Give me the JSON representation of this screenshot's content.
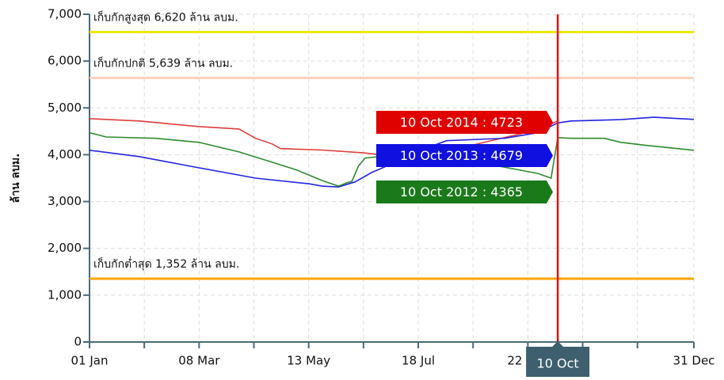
{
  "chart_data": {
    "type": "line",
    "y_label": "ล้าน ลบม.",
    "xlim": [
      0,
      364
    ],
    "xticks": [
      {
        "value": 0,
        "label": "01 Jan"
      },
      {
        "value": 33,
        "label": null
      },
      {
        "value": 66,
        "label": "08 Mar"
      },
      {
        "value": 99,
        "label": null
      },
      {
        "value": 132,
        "label": "13 May"
      },
      {
        "value": 165,
        "label": null
      },
      {
        "value": 198,
        "label": "18 Jul"
      },
      {
        "value": 231,
        "label": null
      },
      {
        "value": 264,
        "label": "22 Sep"
      },
      {
        "value": 297,
        "label": null
      },
      {
        "value": 330,
        "label": null
      },
      {
        "value": 364,
        "label": "31 Dec"
      }
    ],
    "ylim": [
      0,
      7000
    ],
    "yticks": [
      {
        "value": 0,
        "label": "0"
      },
      {
        "value": 1000,
        "label": "1,000"
      },
      {
        "value": 2000,
        "label": "2,000"
      },
      {
        "value": 3000,
        "label": "3,000"
      },
      {
        "value": 4000,
        "label": "4,000"
      },
      {
        "value": 5000,
        "label": "5,000"
      },
      {
        "value": 6000,
        "label": "6,000"
      },
      {
        "value": 7000,
        "label": "7,000"
      }
    ],
    "grid": true,
    "reference_lines": [
      {
        "value": 6620,
        "label": "เก็บกักสูงสุด 6,620 ล้าน ลบม.",
        "color": "#f0e800"
      },
      {
        "value": 5639,
        "label": "เก็บกักปกติ 5,639 ล้าน ลบม.",
        "color": "#ffd2bc"
      },
      {
        "value": 1352,
        "label": "เก็บกักต่ำสุด 1,352 ล้าน ลบม.",
        "color": "#ffa500"
      }
    ],
    "crosshair": {
      "x": 282,
      "label": "10 Oct",
      "color": "#e81010"
    },
    "series": [
      {
        "name": "2014",
        "color": "#e03c3c",
        "tooltip": "10 Oct 2014 : 4723",
        "tooltip_color": "#e00000",
        "x": [
          0,
          30,
          66,
          90,
          100,
          110,
          115,
          140,
          165,
          175,
          200,
          230,
          260,
          275,
          282
        ],
        "values": [
          4770,
          4720,
          4600,
          4550,
          4350,
          4230,
          4130,
          4100,
          4040,
          4000,
          4050,
          4200,
          4450,
          4600,
          4723
        ]
      },
      {
        "name": "2013",
        "color": "#2424e0",
        "tooltip": "10 Oct 2013 : 4679",
        "tooltip_color": "#1010e0",
        "x": [
          0,
          30,
          66,
          100,
          132,
          140,
          150,
          160,
          170,
          185,
          200,
          215,
          250,
          270,
          282,
          290,
          320,
          340,
          364
        ],
        "values": [
          4095,
          3960,
          3720,
          3500,
          3380,
          3330,
          3310,
          3420,
          3620,
          3850,
          4100,
          4300,
          4350,
          4470,
          4679,
          4720,
          4750,
          4800,
          4755
        ]
      },
      {
        "name": "2012",
        "color": "#2e8b2e",
        "tooltip": "10 Oct 2012 : 4365",
        "tooltip_color": "#1a7a1a",
        "x": [
          0,
          10,
          40,
          66,
          90,
          110,
          125,
          140,
          150,
          155,
          158,
          162,
          166,
          175,
          200,
          240,
          270,
          278,
          282,
          290,
          310,
          320,
          335,
          364
        ],
        "values": [
          4470,
          4380,
          4350,
          4265,
          4060,
          3840,
          3670,
          3450,
          3330,
          3400,
          3430,
          3760,
          3930,
          3960,
          3950,
          3800,
          3600,
          3500,
          4365,
          4350,
          4350,
          4265,
          4200,
          4095
        ]
      }
    ]
  }
}
